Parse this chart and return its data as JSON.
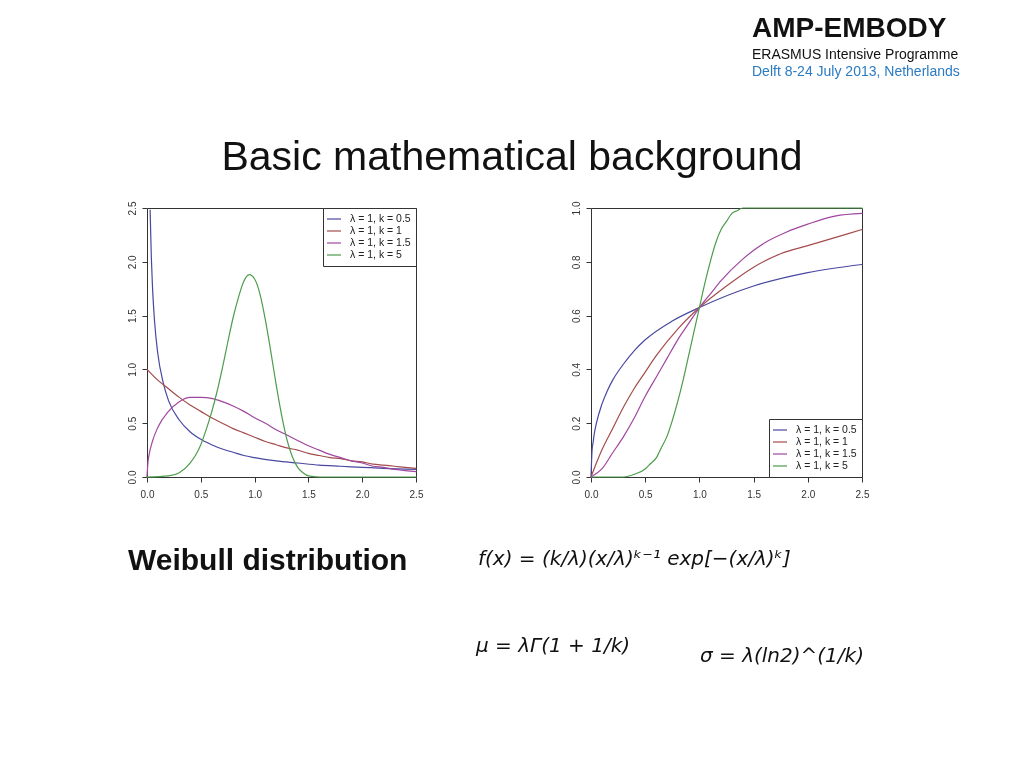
{
  "chart_data": [
    {
      "type": "other",
      "title": "AMP-EMBODY",
      "annotations": [
        "ERASMUS Intensive Programme",
        "Delft 8-24 July 2013, Netherlands"
      ]
    },
    {
      "type": "other",
      "title": "Basic mathematical background"
    },
    {
      "type": "line",
      "xlim": [
        0,
        2.5
      ],
      "ylim": [
        0,
        2.5
      ],
      "xticks": [
        {
          "value": 0,
          "label": "0.0"
        },
        0.5,
        {
          "value": 1,
          "label": "1.0"
        },
        1.5,
        {
          "value": 2,
          "label": "2.0"
        },
        2.5
      ],
      "yticks": [
        {
          "value": 0,
          "label": "0.0"
        },
        0.5,
        {
          "value": 1,
          "label": "1.0"
        },
        1.5,
        {
          "value": 2,
          "label": "2.0"
        },
        2.5
      ],
      "legend": "top right",
      "series": [
        {
          "name": "λ = 1, k = 0.5",
          "color": "#4848a0",
          "x": [
            0.029,
            0.04,
            0.05,
            0.07,
            0.1,
            0.15,
            0.2,
            0.3,
            0.4,
            0.5,
            0.6,
            0.7,
            0.8,
            0.9,
            1.0,
            1.2,
            1.4,
            1.6,
            1.8,
            2.0,
            2.2,
            2.5
          ],
          "values": [
            2.48,
            2.05,
            1.79,
            1.45,
            1.15,
            0.88,
            0.71,
            0.53,
            0.42,
            0.35,
            0.3,
            0.26,
            0.23,
            0.2,
            0.18,
            0.15,
            0.13,
            0.11,
            0.1,
            0.09,
            0.08,
            0.07
          ]
        },
        {
          "name": "λ = 1, k = 1",
          "color": "#a44c4c",
          "x": [
            0,
            0.1,
            0.2,
            0.3,
            0.4,
            0.5,
            0.6,
            0.7,
            0.8,
            0.9,
            1.0,
            1.1,
            1.2,
            1.3,
            1.4,
            1.5,
            1.6,
            1.7,
            1.8,
            1.9,
            2.0,
            2.1,
            2.2,
            2.3,
            2.4,
            2.5
          ],
          "values": [
            1.0,
            0.9,
            0.82,
            0.74,
            0.67,
            0.61,
            0.55,
            0.5,
            0.45,
            0.41,
            0.37,
            0.33,
            0.3,
            0.27,
            0.25,
            0.22,
            0.2,
            0.18,
            0.17,
            0.15,
            0.14,
            0.12,
            0.11,
            0.1,
            0.09,
            0.08
          ]
        },
        {
          "name": "λ = 1, k = 1.5",
          "color": "#a046a0",
          "x": [
            0,
            0.01,
            0.02,
            0.05,
            0.1,
            0.2,
            0.3,
            0.4,
            0.5,
            0.6,
            0.7,
            0.8,
            0.9,
            1.0,
            1.1,
            1.2,
            1.3,
            1.4,
            1.5,
            1.6,
            1.7,
            1.8,
            1.9,
            2.0,
            2.1,
            2.2,
            2.3,
            2.4,
            2.5
          ],
          "values": [
            0,
            0.15,
            0.21,
            0.33,
            0.46,
            0.61,
            0.7,
            0.74,
            0.74,
            0.73,
            0.7,
            0.66,
            0.61,
            0.55,
            0.5,
            0.44,
            0.39,
            0.34,
            0.29,
            0.25,
            0.21,
            0.18,
            0.15,
            0.13,
            0.1,
            0.09,
            0.07,
            0.06,
            0.05
          ]
        },
        {
          "name": "λ = 1, k = 5",
          "color": "#4c9c4c",
          "x": [
            0,
            0.2,
            0.3,
            0.4,
            0.45,
            0.5,
            0.55,
            0.6,
            0.65,
            0.7,
            0.75,
            0.8,
            0.85,
            0.9,
            0.95,
            1.0,
            1.05,
            1.1,
            1.15,
            1.2,
            1.25,
            1.3,
            1.35,
            1.4,
            1.45,
            1.5,
            1.6,
            2.0,
            2.5
          ],
          "values": [
            0,
            0.01,
            0.04,
            0.13,
            0.2,
            0.3,
            0.44,
            0.6,
            0.79,
            1.01,
            1.25,
            1.48,
            1.67,
            1.82,
            1.88,
            1.84,
            1.7,
            1.46,
            1.17,
            0.86,
            0.58,
            0.35,
            0.19,
            0.09,
            0.04,
            0.01,
            0,
            0,
            0
          ]
        }
      ]
    },
    {
      "type": "line",
      "xlim": [
        0,
        2.5
      ],
      "ylim": [
        0,
        1
      ],
      "xticks": [
        {
          "value": 0,
          "label": "0.0"
        },
        0.5,
        {
          "value": 1,
          "label": "1.0"
        },
        1.5,
        {
          "value": 2,
          "label": "2.0"
        },
        2.5
      ],
      "yticks": [
        {
          "value": 0,
          "label": "0.0"
        },
        0.2,
        0.4,
        0.6,
        0.8,
        {
          "value": 1,
          "label": "1.0"
        }
      ],
      "legend": "bottom right",
      "series": [
        {
          "name": "λ = 1, k = 0.5",
          "color": "#4848a0",
          "x": [
            0,
            0.01,
            0.02,
            0.03,
            0.05,
            0.1,
            0.15,
            0.2,
            0.3,
            0.4,
            0.5,
            0.75,
            1.0,
            1.5,
            2.0,
            2.5
          ],
          "values": [
            0,
            0.1,
            0.13,
            0.16,
            0.2,
            0.27,
            0.32,
            0.36,
            0.42,
            0.47,
            0.51,
            0.58,
            0.63,
            0.71,
            0.76,
            0.79
          ]
        },
        {
          "name": "λ = 1, k = 1",
          "color": "#a44c4c",
          "x": [
            0,
            0.1,
            0.2,
            0.3,
            0.4,
            0.5,
            0.6,
            0.8,
            1.0,
            1.25,
            1.5,
            1.75,
            2.0,
            2.25,
            2.5
          ],
          "values": [
            0,
            0.1,
            0.18,
            0.26,
            0.33,
            0.39,
            0.45,
            0.55,
            0.63,
            0.71,
            0.78,
            0.83,
            0.86,
            0.89,
            0.92
          ]
        },
        {
          "name": "λ = 1, k = 1.5",
          "color": "#a046a0",
          "x": [
            0,
            0.1,
            0.2,
            0.3,
            0.4,
            0.5,
            0.6,
            0.7,
            0.8,
            0.9,
            1.0,
            1.1,
            1.2,
            1.4,
            1.6,
            1.8,
            2.0,
            2.25,
            2.5
          ],
          "values": [
            0,
            0.03,
            0.09,
            0.15,
            0.22,
            0.3,
            0.37,
            0.44,
            0.51,
            0.57,
            0.63,
            0.68,
            0.73,
            0.81,
            0.87,
            0.91,
            0.94,
            0.97,
            0.98
          ]
        },
        {
          "name": "λ = 1, k = 5",
          "color": "#4c9c4c",
          "x": [
            0,
            0.3,
            0.4,
            0.5,
            0.55,
            0.6,
            0.65,
            0.7,
            0.75,
            0.8,
            0.85,
            0.9,
            0.95,
            1.0,
            1.05,
            1.1,
            1.15,
            1.2,
            1.25,
            1.3,
            1.35,
            1.4,
            1.5,
            2.0,
            2.5
          ],
          "values": [
            0,
            0,
            0.01,
            0.03,
            0.05,
            0.07,
            0.11,
            0.15,
            0.21,
            0.28,
            0.36,
            0.45,
            0.54,
            0.63,
            0.72,
            0.8,
            0.87,
            0.92,
            0.95,
            0.98,
            0.99,
            1,
            1,
            1,
            1
          ]
        }
      ]
    },
    {
      "type": "other",
      "title": "Weibull distribution",
      "annotations": [
        "f(x) = (k/λ)(x/λ)ᵏ⁻¹ exp[−(x/λ)ᵏ]",
        "μ = λΓ(1 + 1/k)",
        "σ = λ(ln2)^(1/k)"
      ]
    }
  ]
}
